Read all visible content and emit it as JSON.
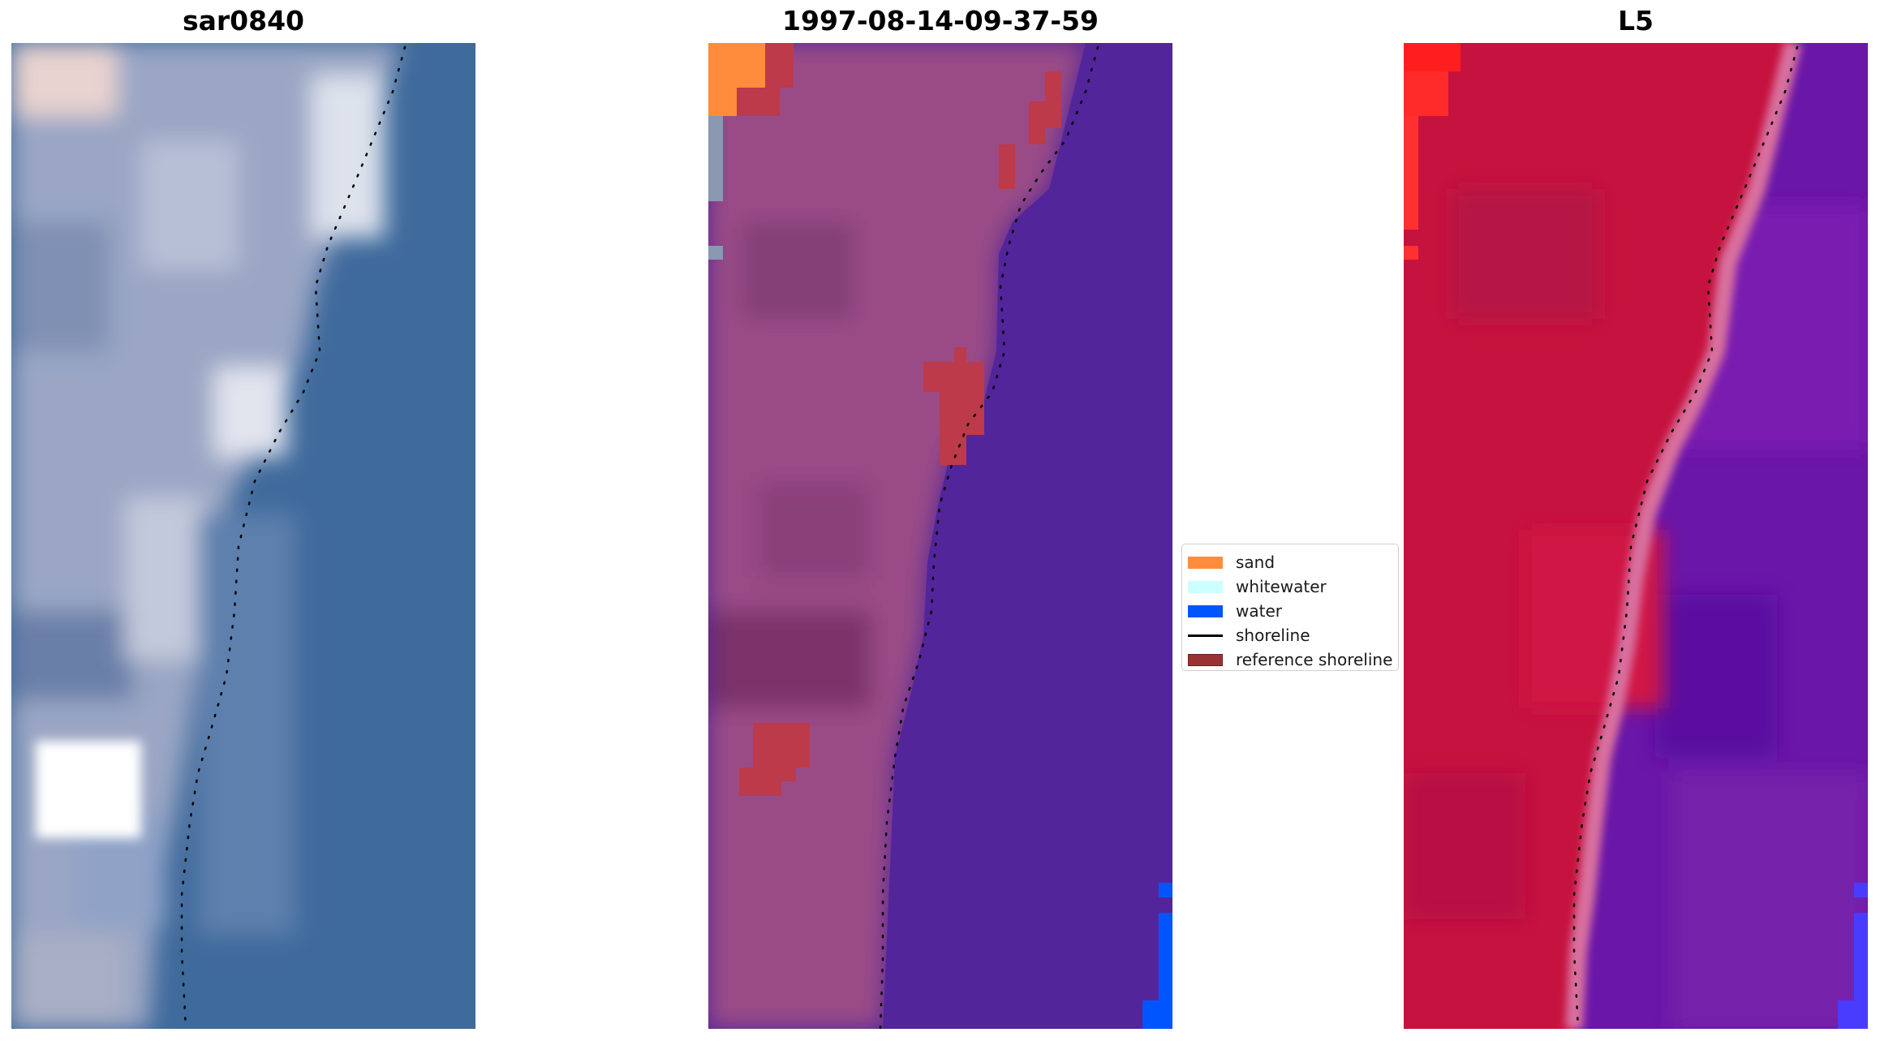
{
  "panels": [
    {
      "title": "sar0840"
    },
    {
      "title": "1997-08-14-09-37-59"
    },
    {
      "title": "L5"
    }
  ],
  "legend": {
    "placement": "center",
    "items": [
      {
        "label": "sand",
        "color": "#ff8c3c",
        "kind": "patch"
      },
      {
        "label": "whitewater",
        "color": "#ccffff",
        "kind": "patch"
      },
      {
        "label": "water",
        "color": "#0055ff",
        "kind": "patch"
      },
      {
        "label": "shoreline",
        "color": "#000000",
        "kind": "line"
      },
      {
        "label": "reference shoreline",
        "color": "#993333",
        "kind": "patch"
      }
    ]
  },
  "colors": {
    "rgb_water": "#3f6a9c",
    "rgb_land": "#9aa6c4",
    "class_land": "#9a4c86",
    "class_water": "#53259a",
    "class_sand": "#ff8c3c",
    "class_reference": "#bc3a4a",
    "l5_land": "#c6123e",
    "l5_water": "#6a16a8"
  }
}
